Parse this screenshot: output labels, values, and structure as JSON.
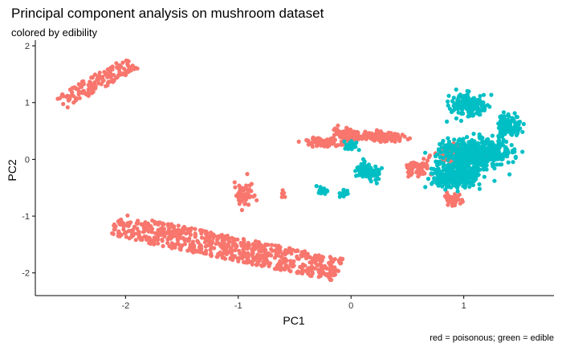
{
  "chart_data": {
    "type": "scatter",
    "title": "Principal component analysis on mushroom dataset",
    "subtitle": "colored by edibility",
    "caption": "red = poisonous; green = edible",
    "xlabel": "PC1",
    "ylabel": "PC2",
    "xlim": [
      -2.8,
      1.8
    ],
    "ylim": [
      -2.4,
      2.1
    ],
    "x_ticks": [
      -2,
      -1,
      0,
      1
    ],
    "y_ticks": [
      -2,
      -1,
      0,
      1,
      2
    ],
    "grid": false,
    "legend": "none",
    "colors": {
      "poisonous": "#F8766D",
      "edible": "#00BFC4"
    },
    "clusters": [
      {
        "group": "poisonous",
        "kind": "band",
        "x0": -2.58,
        "y0": 1.0,
        "x1": -1.95,
        "y1": 1.7,
        "width": 0.3,
        "n": 150
      },
      {
        "group": "poisonous",
        "kind": "band",
        "x0": -2.1,
        "y0": -1.15,
        "x1": -0.1,
        "y1": -1.95,
        "width": 0.42,
        "n": 650
      },
      {
        "group": "poisonous",
        "kind": "blob",
        "cx": -0.95,
        "cy": -0.6,
        "rx": 0.15,
        "ry": 0.4,
        "n": 60
      },
      {
        "group": "poisonous",
        "kind": "blob",
        "cx": -0.6,
        "cy": -0.6,
        "rx": 0.06,
        "ry": 0.1,
        "n": 6
      },
      {
        "group": "poisonous",
        "kind": "blob",
        "cx": -0.05,
        "cy": 0.45,
        "rx": 0.2,
        "ry": 0.25,
        "n": 60
      },
      {
        "group": "poisonous",
        "kind": "blob",
        "cx": 0.25,
        "cy": 0.4,
        "rx": 0.4,
        "ry": 0.15,
        "n": 150
      },
      {
        "group": "poisonous",
        "kind": "blob",
        "cx": -0.25,
        "cy": 0.3,
        "rx": 0.3,
        "ry": 0.12,
        "n": 100
      },
      {
        "group": "poisonous",
        "kind": "blob",
        "cx": 0.6,
        "cy": -0.15,
        "rx": 0.2,
        "ry": 0.25,
        "n": 80
      },
      {
        "group": "poisonous",
        "kind": "blob",
        "cx": 0.95,
        "cy": 0.1,
        "rx": 0.35,
        "ry": 0.3,
        "n": 120
      },
      {
        "group": "poisonous",
        "kind": "blob",
        "cx": 0.9,
        "cy": -0.7,
        "rx": 0.15,
        "ry": 0.15,
        "n": 40
      },
      {
        "group": "edible",
        "kind": "blob",
        "cx": 1.05,
        "cy": 0.95,
        "rx": 0.3,
        "ry": 0.35,
        "n": 150
      },
      {
        "group": "edible",
        "kind": "blob",
        "cx": 1.1,
        "cy": 0.1,
        "rx": 0.55,
        "ry": 0.45,
        "n": 500
      },
      {
        "group": "edible",
        "kind": "blob",
        "cx": 0.95,
        "cy": -0.3,
        "rx": 0.4,
        "ry": 0.35,
        "n": 300
      },
      {
        "group": "edible",
        "kind": "blob",
        "cx": 1.4,
        "cy": 0.6,
        "rx": 0.2,
        "ry": 0.4,
        "n": 100
      },
      {
        "group": "edible",
        "kind": "blob",
        "cx": 0.15,
        "cy": -0.2,
        "rx": 0.2,
        "ry": 0.3,
        "n": 90
      },
      {
        "group": "edible",
        "kind": "blob",
        "cx": 0.0,
        "cy": 0.25,
        "rx": 0.12,
        "ry": 0.15,
        "n": 30
      },
      {
        "group": "edible",
        "kind": "blob",
        "cx": -0.25,
        "cy": -0.55,
        "rx": 0.1,
        "ry": 0.12,
        "n": 18
      },
      {
        "group": "edible",
        "kind": "blob",
        "cx": -0.05,
        "cy": -0.6,
        "rx": 0.1,
        "ry": 0.12,
        "n": 15
      }
    ]
  }
}
